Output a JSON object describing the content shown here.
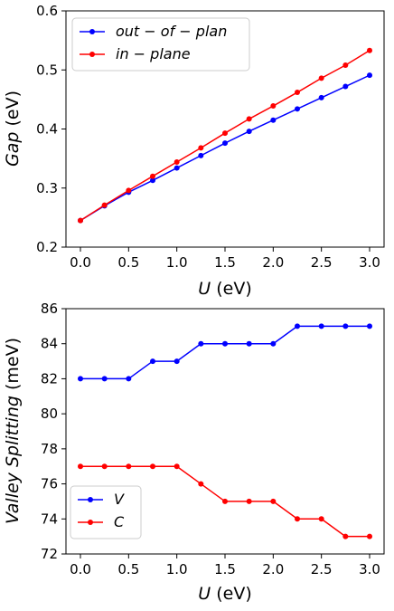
{
  "chart_data": [
    {
      "type": "line",
      "xlabel": "U",
      "xlabel_unit": "(eV)",
      "ylabel": "Gap",
      "ylabel_unit": "(eV)",
      "xlim": [
        -0.15,
        3.15
      ],
      "ylim": [
        0.2,
        0.6
      ],
      "xticks": [
        "0.0",
        "0.5",
        "1.0",
        "1.5",
        "2.0",
        "2.5",
        "3.0"
      ],
      "yticks": [
        "0.2",
        "0.3",
        "0.4",
        "0.5",
        "0.6"
      ],
      "legend_position": "top-left",
      "x": [
        0.0,
        0.25,
        0.5,
        0.75,
        1.0,
        1.25,
        1.5,
        1.75,
        2.0,
        2.25,
        2.5,
        2.75,
        3.0
      ],
      "series": [
        {
          "name": "out − of − plan",
          "color": "#0000ff",
          "values": [
            0.245,
            0.27,
            0.293,
            0.313,
            0.334,
            0.355,
            0.376,
            0.396,
            0.415,
            0.434,
            0.453,
            0.472,
            0.491
          ]
        },
        {
          "name": "in − plane",
          "color": "#ff0000",
          "values": [
            0.245,
            0.271,
            0.296,
            0.32,
            0.344,
            0.368,
            0.393,
            0.417,
            0.439,
            0.462,
            0.486,
            0.508,
            0.533
          ]
        }
      ]
    },
    {
      "type": "line",
      "xlabel": "U",
      "xlabel_unit": "(eV)",
      "ylabel": "Valley Splitting",
      "ylabel_unit": "(meV)",
      "xlim": [
        -0.15,
        3.15
      ],
      "ylim": [
        72,
        86
      ],
      "xticks": [
        "0.0",
        "0.5",
        "1.0",
        "1.5",
        "2.0",
        "2.5",
        "3.0"
      ],
      "yticks": [
        "72",
        "74",
        "76",
        "78",
        "80",
        "82",
        "84",
        "86"
      ],
      "legend_position": "bottom-left",
      "x": [
        0.0,
        0.25,
        0.5,
        0.75,
        1.0,
        1.25,
        1.5,
        1.75,
        2.0,
        2.25,
        2.5,
        2.75,
        3.0
      ],
      "series": [
        {
          "name": "V",
          "color": "#0000ff",
          "values": [
            82,
            82,
            82,
            83,
            83,
            84,
            84,
            84,
            84,
            85,
            85,
            85,
            85
          ]
        },
        {
          "name": "C",
          "color": "#ff0000",
          "values": [
            77,
            77,
            77,
            77,
            77,
            76,
            75,
            75,
            75,
            74,
            74,
            73,
            73
          ]
        }
      ]
    }
  ]
}
